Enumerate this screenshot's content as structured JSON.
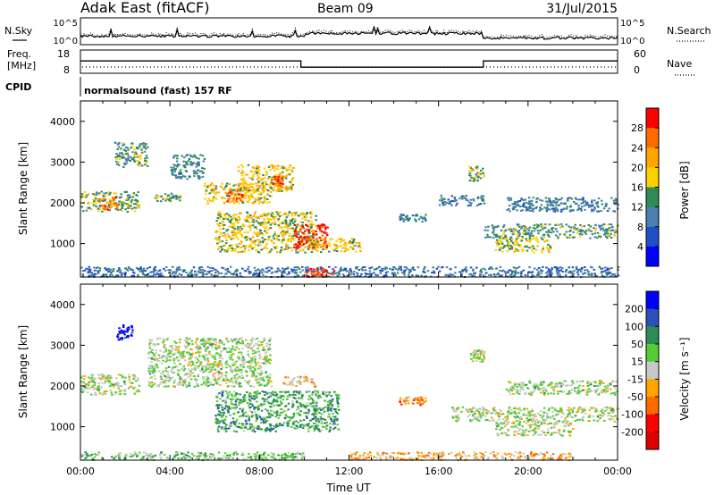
{
  "header": {
    "station": "Adak East (fitACF)",
    "beam": "Beam 09",
    "date": "31/Jul/2015"
  },
  "summary_panels": {
    "nsky_label": "N.Sky",
    "nsearch_label": "N.Search",
    "noise_ticks": [
      "10^5",
      "10^0"
    ],
    "freq_label_1": "Freq.",
    "freq_label_2": "[MHz]",
    "freq_ticks": [
      "18",
      "8"
    ],
    "nave_label": "Nave",
    "nave_ticks": [
      "60",
      "0"
    ],
    "cpid_label": "CPID",
    "cpid_text": "normalsound (fast) 157 RF",
    "freq_steps": [
      {
        "from": 0,
        "to": 9.85,
        "value": 13.3
      },
      {
        "from": 9.85,
        "to": 18.0,
        "value": 10.6
      },
      {
        "from": 18.0,
        "to": 24,
        "value": 13.3
      }
    ],
    "colors": {
      "line": "#000000"
    }
  },
  "chart_data": [
    {
      "type": "heatmap",
      "name": "power",
      "ylabel": "Slant Range [km]",
      "xlabel": "",
      "xlim": [
        0,
        24
      ],
      "ylim": [
        180,
        4500
      ],
      "yticks": [
        "1000",
        "2000",
        "3000",
        "4000"
      ],
      "colorbar": {
        "label": "Power [dB]",
        "ticks": [
          "28",
          "24",
          "20",
          "16",
          "12",
          "8",
          "4"
        ],
        "colors": [
          "#ff0000",
          "#ff6a00",
          "#ffa500",
          "#ffd000",
          "#2e8b57",
          "#4a7fae",
          "#2050c8",
          "#0000ff"
        ]
      },
      "regions": [
        {
          "t0": 0.0,
          "t1": 2.6,
          "r0": 1800,
          "r1": 2300,
          "level": 0.45
        },
        {
          "t0": 0.8,
          "t1": 1.6,
          "r0": 1850,
          "r1": 2150,
          "level": 0.8
        },
        {
          "t0": 1.5,
          "t1": 3.0,
          "r0": 2900,
          "r1": 3500,
          "level": 0.4
        },
        {
          "t0": 3.3,
          "t1": 4.5,
          "r0": 2050,
          "r1": 2250,
          "level": 0.45
        },
        {
          "t0": 4.0,
          "t1": 5.5,
          "r0": 2600,
          "r1": 3200,
          "level": 0.35
        },
        {
          "t0": 5.5,
          "t1": 8.5,
          "r0": 2000,
          "r1": 2500,
          "level": 0.6
        },
        {
          "t0": 6.5,
          "t1": 7.3,
          "r0": 2050,
          "r1": 2350,
          "level": 0.85
        },
        {
          "t0": 7.0,
          "t1": 9.5,
          "r0": 2300,
          "r1": 2950,
          "level": 0.6
        },
        {
          "t0": 8.5,
          "t1": 9.0,
          "r0": 2450,
          "r1": 2700,
          "level": 0.9
        },
        {
          "t0": 6.0,
          "t1": 10.5,
          "r0": 800,
          "r1": 1800,
          "level": 0.55
        },
        {
          "t0": 9.5,
          "t1": 11.0,
          "r0": 900,
          "r1": 1500,
          "level": 0.95
        },
        {
          "t0": 10.2,
          "t1": 12.5,
          "r0": 800,
          "r1": 1150,
          "level": 0.6
        },
        {
          "t0": 14.2,
          "t1": 15.4,
          "r0": 1550,
          "r1": 1750,
          "level": 0.3
        },
        {
          "t0": 16.0,
          "t1": 18.0,
          "r0": 1950,
          "r1": 2200,
          "level": 0.3
        },
        {
          "t0": 17.3,
          "t1": 18.0,
          "r0": 2550,
          "r1": 2950,
          "level": 0.5
        },
        {
          "t0": 18.0,
          "t1": 24.0,
          "r0": 1150,
          "r1": 1500,
          "level": 0.4
        },
        {
          "t0": 18.5,
          "t1": 21.0,
          "r0": 800,
          "r1": 1150,
          "level": 0.55
        },
        {
          "t0": 19.0,
          "t1": 24.0,
          "r0": 1800,
          "r1": 2150,
          "level": 0.3
        },
        {
          "t0": 0.0,
          "t1": 24.0,
          "r0": 200,
          "r1": 450,
          "level": 0.25
        },
        {
          "t0": 10.0,
          "t1": 11.3,
          "r0": 200,
          "r1": 420,
          "level": 0.9
        }
      ]
    },
    {
      "type": "heatmap",
      "name": "velocity",
      "ylabel": "Slant Range [km]",
      "xlabel": "Time UT",
      "xlim": [
        0,
        24
      ],
      "ylim": [
        180,
        4500
      ],
      "xticks": [
        "00:00",
        "04:00",
        "08:00",
        "12:00",
        "16:00",
        "20:00",
        "00:00"
      ],
      "yticks": [
        "1000",
        "2000",
        "3000",
        "4000"
      ],
      "colorbar": {
        "label": "Velocity [m s⁻¹]",
        "ticks": [
          "200",
          "100",
          "50",
          "15",
          "-15",
          "-50",
          "-100",
          "-200"
        ],
        "colors": [
          "#0000ff",
          "#2c4fb8",
          "#2e8b57",
          "#55cc33",
          "#c8c8c8",
          "#ffa500",
          "#ff6a00",
          "#ff0000",
          "#e00000"
        ]
      },
      "regions": [
        {
          "t0": 1.6,
          "t1": 2.3,
          "r0": 3150,
          "r1": 3550,
          "level": 0.0
        },
        {
          "t0": 0.0,
          "t1": 2.6,
          "r0": 1800,
          "r1": 2300,
          "level": 0.45
        },
        {
          "t0": 3.0,
          "t1": 8.5,
          "r0": 2000,
          "r1": 3200,
          "level": 0.45
        },
        {
          "t0": 6.0,
          "t1": 11.5,
          "r0": 900,
          "r1": 1900,
          "level": 0.3
        },
        {
          "t0": 9.0,
          "t1": 10.5,
          "r0": 2000,
          "r1": 2250,
          "level": 0.6
        },
        {
          "t0": 14.2,
          "t1": 15.4,
          "r0": 1550,
          "r1": 1750,
          "level": 0.7
        },
        {
          "t0": 16.5,
          "t1": 24.0,
          "r0": 1150,
          "r1": 1500,
          "level": 0.45
        },
        {
          "t0": 18.5,
          "t1": 22.0,
          "r0": 800,
          "r1": 1150,
          "level": 0.45
        },
        {
          "t0": 19.0,
          "t1": 24.0,
          "r0": 1800,
          "r1": 2150,
          "level": 0.45
        },
        {
          "t0": 0.0,
          "t1": 10.0,
          "r0": 200,
          "r1": 400,
          "level": 0.4
        },
        {
          "t0": 12.0,
          "t1": 22.0,
          "r0": 200,
          "r1": 400,
          "level": 0.6
        },
        {
          "t0": 17.4,
          "t1": 18.0,
          "r0": 2600,
          "r1": 2900,
          "level": 0.45
        }
      ]
    }
  ]
}
